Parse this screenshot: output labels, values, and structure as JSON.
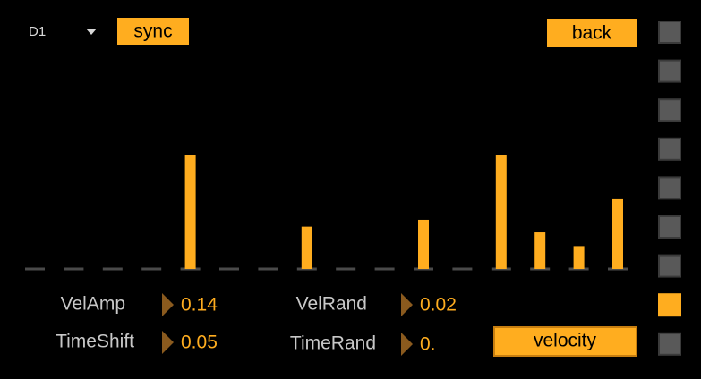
{
  "header": {
    "preset": "D1",
    "sync": "sync",
    "back": "back"
  },
  "steps": [
    0,
    0,
    0,
    0,
    1,
    0,
    0,
    0.37,
    0,
    0,
    0.43,
    0,
    1,
    0.32,
    0.2,
    0.61
  ],
  "params": [
    {
      "label": "VelAmp",
      "value": "0.14"
    },
    {
      "label": "VelRand",
      "value": "0.02"
    },
    {
      "label": "TimeShift",
      "value": "0.05"
    },
    {
      "label": "TimeRand",
      "value": "0."
    }
  ],
  "mode_button": "velocity"
}
